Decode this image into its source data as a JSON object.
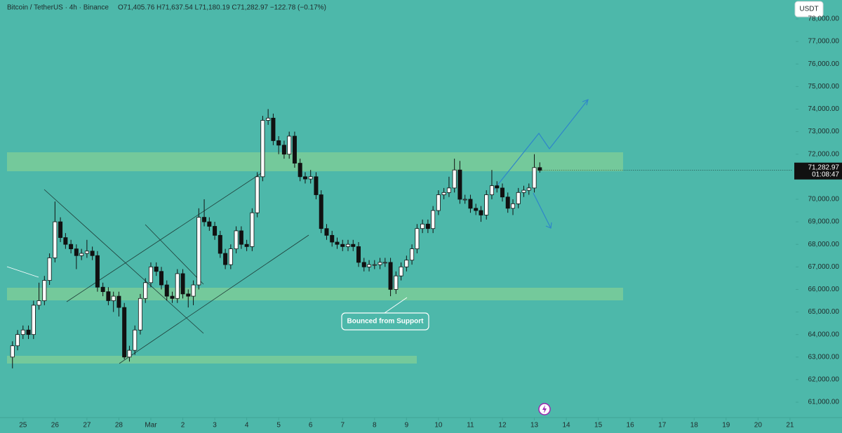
{
  "chart_data": {
    "type": "candlestick",
    "title": "Bitcoin / TetherUS · 4h · Binance",
    "ohlc_header": "O71,405.76  H71,637.54  L71,180.19  C71,282.97  −122.78 (−0.17%)",
    "currency_button": "USDT",
    "last_price_label": "71,282.97",
    "countdown": "01:08:47",
    "annotation": "Bounced from Support",
    "up_color": "#ffffff",
    "down_color": "#111111",
    "xlim": [
      -0.72,
      24.09
    ],
    "xticks": [
      {
        "value": 0,
        "label": "25"
      },
      {
        "value": 1,
        "label": "26"
      },
      {
        "value": 2,
        "label": "27"
      },
      {
        "value": 3,
        "label": "28"
      },
      {
        "value": 4,
        "label": "Mar"
      },
      {
        "value": 5,
        "label": "2"
      },
      {
        "value": 6,
        "label": "3"
      },
      {
        "value": 7,
        "label": "4"
      },
      {
        "value": 8,
        "label": "5"
      },
      {
        "value": 9,
        "label": "6"
      },
      {
        "value": 10,
        "label": "7"
      },
      {
        "value": 11,
        "label": "8"
      },
      {
        "value": 12,
        "label": "9"
      },
      {
        "value": 13,
        "label": "10"
      },
      {
        "value": 14,
        "label": "11"
      },
      {
        "value": 15,
        "label": "12"
      },
      {
        "value": 16,
        "label": "13"
      },
      {
        "value": 17,
        "label": "14"
      },
      {
        "value": 18,
        "label": "15"
      },
      {
        "value": 19,
        "label": "16"
      },
      {
        "value": 20,
        "label": "17"
      },
      {
        "value": 21,
        "label": "18"
      },
      {
        "value": 22,
        "label": "19"
      },
      {
        "value": 23,
        "label": "20"
      },
      {
        "value": 24,
        "label": "21"
      }
    ],
    "ylim": [
      60316,
      78840
    ],
    "yticks": [
      {
        "value": 61000,
        "label": "61,000.00"
      },
      {
        "value": 62000,
        "label": "62,000.00"
      },
      {
        "value": 63000,
        "label": "63,000.00"
      },
      {
        "value": 64000,
        "label": "64,000.00"
      },
      {
        "value": 65000,
        "label": "65,000.00"
      },
      {
        "value": 66000,
        "label": "66,000.00"
      },
      {
        "value": 67000,
        "label": "67,000.00"
      },
      {
        "value": 68000,
        "label": "68,000.00"
      },
      {
        "value": 69000,
        "label": "69,000.00"
      },
      {
        "value": 70000,
        "label": "70,000.00"
      },
      {
        "value": 71000,
        "label": "71,000.00"
      },
      {
        "value": 72000,
        "label": "72,000.00"
      },
      {
        "value": 73000,
        "label": "73,000.00"
      },
      {
        "value": 74000,
        "label": "74,000.00"
      },
      {
        "value": 75000,
        "label": "75,000.00"
      },
      {
        "value": 76000,
        "label": "76,000.00"
      },
      {
        "value": 77000,
        "label": "77,000.00"
      },
      {
        "value": 78000,
        "label": "78,000.00"
      }
    ],
    "x": [
      -0.33,
      -0.17,
      0,
      0.17,
      0.33,
      0.5,
      0.67,
      0.83,
      1,
      1.17,
      1.33,
      1.5,
      1.67,
      1.83,
      2,
      2.17,
      2.33,
      2.5,
      2.67,
      2.83,
      3,
      3.17,
      3.33,
      3.5,
      3.67,
      3.83,
      4,
      4.17,
      4.33,
      4.5,
      4.67,
      4.83,
      5,
      5.17,
      5.33,
      5.5,
      5.67,
      5.83,
      6,
      6.17,
      6.33,
      6.5,
      6.67,
      6.83,
      7,
      7.17,
      7.33,
      7.5,
      7.67,
      7.83,
      8,
      8.17,
      8.33,
      8.5,
      8.67,
      8.83,
      9,
      9.17,
      9.33,
      9.5,
      9.67,
      9.83,
      10,
      10.17,
      10.33,
      10.5,
      10.67,
      10.83,
      11,
      11.17,
      11.33,
      11.5,
      11.67,
      11.83,
      12,
      12.17,
      12.33,
      12.5,
      12.67,
      12.83,
      13,
      13.17,
      13.33,
      13.5,
      13.67,
      13.83,
      14,
      14.17,
      14.33,
      14.5,
      14.67,
      14.83,
      15,
      15.17,
      15.33,
      15.5,
      15.67,
      15.83,
      16,
      16.17
    ],
    "open": [
      63000,
      63500,
      64000,
      64200,
      64000,
      65300,
      65500,
      66400,
      67400,
      69000,
      68300,
      68000,
      67800,
      67500,
      67600,
      67700,
      67500,
      66100,
      65900,
      65500,
      65700,
      65200,
      63000,
      63300,
      64200,
      65600,
      66300,
      67000,
      66800,
      66200,
      65700,
      65600,
      66700,
      65800,
      65700,
      66200,
      69200,
      69000,
      68800,
      68400,
      67600,
      67100,
      67800,
      68600,
      68000,
      67900,
      69400,
      71000,
      73500,
      73600,
      72600,
      72400,
      72000,
      72800,
      71600,
      71000,
      70900,
      71000,
      70200,
      68700,
      68400,
      68100,
      68000,
      67900,
      68000,
      67900,
      67200,
      67000,
      67100,
      67100,
      67200,
      67200,
      66000,
      66600,
      67000,
      67300,
      67800,
      68700,
      68900,
      68700,
      69500,
      70200,
      70300,
      70500,
      71300,
      70000,
      70000,
      69600,
      69500,
      69300,
      70200,
      70600,
      70500,
      70100,
      69600,
      69800,
      70300,
      70400,
      70500,
      71405.76
    ],
    "high": [
      63700,
      64200,
      64400,
      64400,
      65500,
      66300,
      66600,
      67600,
      69900,
      69200,
      68500,
      68200,
      68000,
      67800,
      68200,
      67900,
      67700,
      66300,
      66100,
      65900,
      65900,
      65400,
      63500,
      64400,
      65800,
      66500,
      67200,
      67200,
      67000,
      66400,
      65900,
      66900,
      66900,
      66000,
      66400,
      69600,
      70000,
      69200,
      69000,
      68600,
      67800,
      68000,
      68800,
      68800,
      68200,
      69600,
      71200,
      73700,
      74000,
      73800,
      72800,
      72600,
      73000,
      73000,
      71800,
      71200,
      71300,
      71200,
      70400,
      68900,
      68600,
      68300,
      68200,
      68200,
      68200,
      68100,
      67400,
      67300,
      67300,
      67400,
      67400,
      67400,
      66800,
      67200,
      67500,
      68000,
      68900,
      69100,
      69100,
      69700,
      70400,
      70500,
      71000,
      71800,
      71700,
      70200,
      70200,
      69800,
      69700,
      70400,
      71300,
      70800,
      70700,
      70300,
      70000,
      70500,
      70600,
      70700,
      72000,
      71637.54
    ],
    "low": [
      62500,
      63300,
      63800,
      63800,
      63800,
      65100,
      65300,
      66200,
      67200,
      68100,
      67800,
      67600,
      66900,
      67300,
      67400,
      67300,
      65900,
      65700,
      65300,
      65000,
      64800,
      62900,
      62800,
      63100,
      64000,
      65400,
      66100,
      66600,
      66000,
      65500,
      65400,
      65400,
      65600,
      65200,
      65300,
      66000,
      68800,
      68600,
      68200,
      67400,
      66900,
      66900,
      67600,
      67800,
      67700,
      67700,
      69200,
      70800,
      73300,
      72400,
      72000,
      71800,
      71800,
      71400,
      70800,
      70700,
      70700,
      70000,
      68500,
      68200,
      67900,
      67800,
      67700,
      67700,
      67700,
      67000,
      66800,
      66800,
      66900,
      66900,
      67000,
      65700,
      65800,
      66400,
      66800,
      67100,
      67600,
      68500,
      68500,
      68500,
      69300,
      70000,
      70100,
      70300,
      69800,
      69800,
      69400,
      69300,
      69000,
      69100,
      70000,
      70300,
      69900,
      69400,
      69300,
      69600,
      70100,
      70200,
      70300,
      71180.19
    ],
    "close": [
      63500,
      64000,
      64200,
      64000,
      65300,
      65500,
      66400,
      67400,
      69000,
      68300,
      68000,
      67800,
      67500,
      67600,
      67700,
      67500,
      66100,
      65900,
      65500,
      65700,
      65200,
      63000,
      63300,
      64200,
      65600,
      66300,
      67000,
      66800,
      66200,
      65700,
      65600,
      66700,
      65800,
      65700,
      66200,
      69200,
      69000,
      68800,
      68400,
      67600,
      67100,
      67800,
      68600,
      68000,
      67900,
      69400,
      71000,
      73500,
      73600,
      72600,
      72400,
      72000,
      72800,
      71600,
      71000,
      70900,
      71000,
      70200,
      68700,
      68400,
      68100,
      68000,
      67900,
      68000,
      67900,
      67200,
      67000,
      67100,
      67100,
      67200,
      67200,
      66000,
      66600,
      67000,
      67300,
      67800,
      68700,
      68900,
      68700,
      69500,
      70200,
      70300,
      70500,
      71300,
      70000,
      70000,
      69600,
      69500,
      69300,
      70200,
      70600,
      70500,
      70100,
      69600,
      69800,
      70300,
      70400,
      70500,
      71405.76,
      71282.97
    ]
  }
}
